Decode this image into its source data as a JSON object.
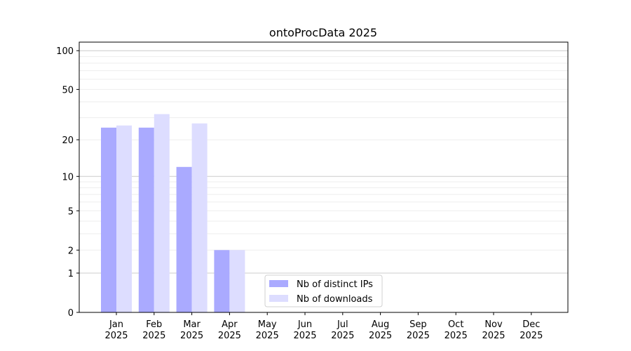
{
  "chart_data": {
    "type": "bar",
    "title": "ontoProcData 2025",
    "categories": [
      "Jan\n2025",
      "Feb\n2025",
      "Mar\n2025",
      "Apr\n2025",
      "May\n2025",
      "Jun\n2025",
      "Jul\n2025",
      "Aug\n2025",
      "Sep\n2025",
      "Oct\n2025",
      "Nov\n2025",
      "Dec\n2025"
    ],
    "series": [
      {
        "name": "Nb of distinct IPs",
        "color": "#aaaaff",
        "values": [
          25,
          25,
          12,
          2,
          null,
          null,
          null,
          null,
          null,
          null,
          null,
          null
        ]
      },
      {
        "name": "Nb of downloads",
        "color": "#ddddff",
        "values": [
          26,
          32,
          27,
          2,
          null,
          null,
          null,
          null,
          null,
          null,
          null,
          null
        ]
      }
    ],
    "yscale": "log10(1+y)",
    "yticks": [
      0,
      1,
      2,
      5,
      10,
      20,
      50,
      100
    ],
    "ylim": [
      0,
      120
    ],
    "grid": true,
    "legend": "bottom-center",
    "xlabel": "",
    "ylabel": ""
  }
}
